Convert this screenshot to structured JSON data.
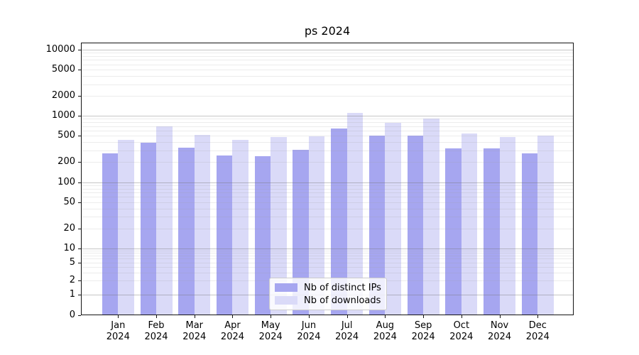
{
  "title": "ps 2024",
  "chart_data": {
    "type": "bar",
    "title": "ps 2024",
    "categories": [
      "Jan",
      "Feb",
      "Mar",
      "Apr",
      "May",
      "Jun",
      "Jul",
      "Aug",
      "Sep",
      "Oct",
      "Nov",
      "Dec"
    ],
    "category_year": "2024",
    "series": [
      {
        "name": "Nb of distinct IPs",
        "color": "#a6a6f0",
        "values": [
          270,
          390,
          330,
          250,
          245,
          305,
          650,
          500,
          500,
          320,
          325,
          275
        ]
      },
      {
        "name": "Nb of downloads",
        "color": "#dadaf8",
        "values": [
          430,
          700,
          520,
          440,
          480,
          490,
          1100,
          785,
          900,
          540,
          475,
          510
        ]
      }
    ],
    "yscale": "symlog",
    "yticks": [
      0,
      1,
      2,
      5,
      10,
      20,
      50,
      100,
      200,
      500,
      1000,
      2000,
      5000,
      10000
    ],
    "major_gridlines": [
      1,
      10,
      100,
      1000,
      10000
    ],
    "ylim": [
      0,
      11800
    ],
    "grid": true,
    "legend_position": "lower center",
    "colors": {
      "grid_major": "#c7c7c7",
      "grid_minor": "#e6e6e6",
      "spine": "#141414",
      "background": "#ffffff"
    }
  }
}
